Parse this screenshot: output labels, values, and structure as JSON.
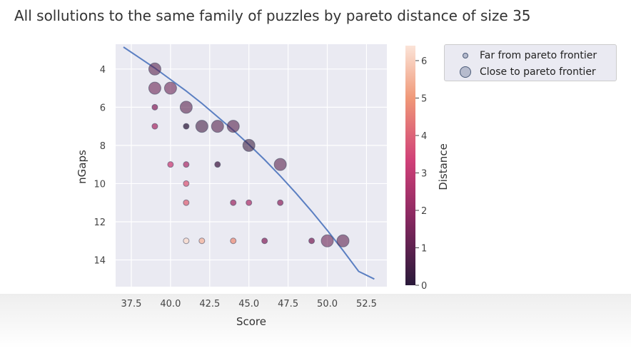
{
  "title": "All sollutions to the same family of puzzles by pareto distance of size 35",
  "legend": {
    "entries": [
      {
        "label": "Far from pareto frontier"
      },
      {
        "label": "Close to pareto frontier"
      }
    ]
  },
  "colorbar": {
    "label": "Distance",
    "min": 0,
    "max": 6.4,
    "ticks": [
      "0",
      "1",
      "2",
      "3",
      "4",
      "5",
      "6"
    ],
    "colors": {
      "high": "#fbe4d8",
      "mid1": "#f09878",
      "mid2": "#d04078",
      "mid3": "#882860",
      "low": "#2a1a3a"
    }
  },
  "chart_data": {
    "type": "scatter",
    "title": "All sollutions to the same family of puzzles by pareto distance of size 35",
    "xlabel": "Score",
    "ylabel": "nGaps",
    "xlim": [
      36.5,
      53.8
    ],
    "ylim": [
      15.4,
      2.7
    ],
    "y_inverted": true,
    "grid": true,
    "legend_placement": "outside-right",
    "x_ticks": [
      "37.5",
      "40.0",
      "42.5",
      "45.0",
      "47.5",
      "50.0",
      "52.5"
    ],
    "y_ticks": [
      "4",
      "6",
      "8",
      "10",
      "12",
      "14"
    ],
    "points": [
      {
        "x": 39,
        "y": 4,
        "distance": 0.9,
        "size": "large"
      },
      {
        "x": 39,
        "y": 5,
        "distance": 1.2,
        "size": "large"
      },
      {
        "x": 40,
        "y": 5,
        "distance": 1.2,
        "size": "large"
      },
      {
        "x": 39,
        "y": 6,
        "distance": 1.8,
        "size": "small"
      },
      {
        "x": 41,
        "y": 6,
        "distance": 0.9,
        "size": "large"
      },
      {
        "x": 39,
        "y": 7,
        "distance": 2.5,
        "size": "small"
      },
      {
        "x": 41,
        "y": 7,
        "distance": 0.1,
        "size": "small"
      },
      {
        "x": 42,
        "y": 7,
        "distance": 0.5,
        "size": "large"
      },
      {
        "x": 43,
        "y": 7,
        "distance": 0.8,
        "size": "large"
      },
      {
        "x": 44,
        "y": 7,
        "distance": 0.8,
        "size": "large"
      },
      {
        "x": 45,
        "y": 8,
        "distance": 0.3,
        "size": "large"
      },
      {
        "x": 40,
        "y": 9,
        "distance": 3.2,
        "size": "small"
      },
      {
        "x": 41,
        "y": 9,
        "distance": 2.6,
        "size": "small"
      },
      {
        "x": 43,
        "y": 9,
        "distance": 0.5,
        "size": "small"
      },
      {
        "x": 47,
        "y": 9,
        "distance": 0.9,
        "size": "large"
      },
      {
        "x": 41,
        "y": 10,
        "distance": 3.8,
        "size": "small"
      },
      {
        "x": 41,
        "y": 11,
        "distance": 4.0,
        "size": "small"
      },
      {
        "x": 44,
        "y": 11,
        "distance": 2.3,
        "size": "small"
      },
      {
        "x": 45,
        "y": 11,
        "distance": 2.6,
        "size": "small"
      },
      {
        "x": 47,
        "y": 11,
        "distance": 2.0,
        "size": "small"
      },
      {
        "x": 41,
        "y": 13,
        "distance": 6.2,
        "size": "small"
      },
      {
        "x": 42,
        "y": 13,
        "distance": 5.5,
        "size": "small"
      },
      {
        "x": 44,
        "y": 13,
        "distance": 4.8,
        "size": "small"
      },
      {
        "x": 46,
        "y": 13,
        "distance": 1.8,
        "size": "small"
      },
      {
        "x": 49,
        "y": 13,
        "distance": 1.6,
        "size": "small"
      },
      {
        "x": 50,
        "y": 13,
        "distance": 1.2,
        "size": "large"
      },
      {
        "x": 51,
        "y": 13,
        "distance": 1.0,
        "size": "large"
      }
    ],
    "frontier_curve": [
      {
        "x": 37,
        "y": 2.85
      },
      {
        "x": 38,
        "y": 3.4
      },
      {
        "x": 39,
        "y": 3.95
      },
      {
        "x": 40,
        "y": 4.55
      },
      {
        "x": 41,
        "y": 5.15
      },
      {
        "x": 42,
        "y": 5.8
      },
      {
        "x": 43,
        "y": 6.5
      },
      {
        "x": 44,
        "y": 7.2
      },
      {
        "x": 45,
        "y": 7.95
      },
      {
        "x": 46,
        "y": 8.75
      },
      {
        "x": 47,
        "y": 9.6
      },
      {
        "x": 48,
        "y": 10.5
      },
      {
        "x": 49,
        "y": 11.45
      },
      {
        "x": 50,
        "y": 12.45
      },
      {
        "x": 51,
        "y": 13.5
      },
      {
        "x": 52,
        "y": 14.6
      },
      {
        "x": 53,
        "y": 15.0
      }
    ],
    "frontier_color": "#5b7fc2"
  }
}
